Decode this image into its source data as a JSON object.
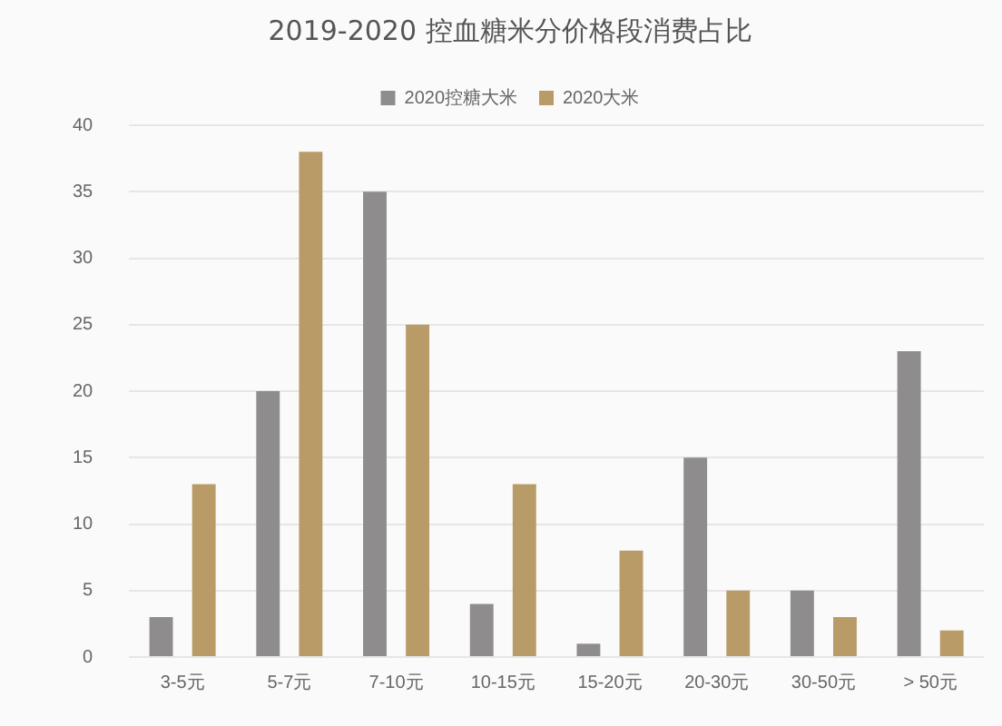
{
  "chart_data": {
    "type": "bar",
    "title": "2019-2020 控血糖米分价格段消费占比",
    "categories": [
      "3-5元",
      "5-7元",
      "7-10元",
      "10-15元",
      "15-20元",
      "20-30元",
      "30-50元",
      "> 50元"
    ],
    "series": [
      {
        "name": "2020控糖大米",
        "color": "#8e8c8c",
        "values": [
          3,
          20,
          35,
          4,
          1,
          15,
          5,
          23
        ]
      },
      {
        "name": "2020大米",
        "color": "#b99b68",
        "values": [
          13,
          38,
          25,
          13,
          8,
          5,
          3,
          2
        ]
      }
    ],
    "ylim": [
      0,
      40
    ],
    "yticks": [
      0,
      5,
      10,
      15,
      20,
      25,
      30,
      35,
      40
    ],
    "grid": "y",
    "legend": "top"
  }
}
